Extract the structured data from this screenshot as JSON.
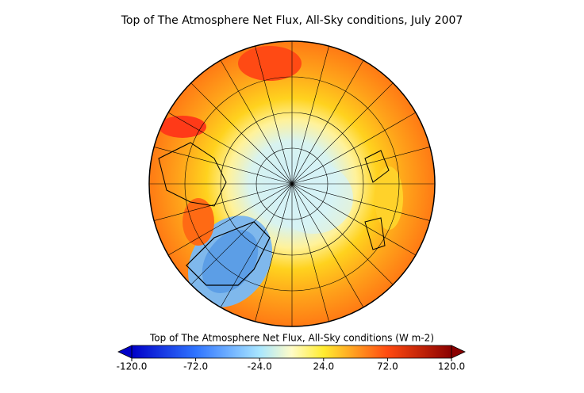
{
  "title": "Top of The Atmosphere Net Flux, All-Sky conditions, July 2007",
  "colorbar": {
    "label": "Top of The Atmosphere Net Flux, All-Sky conditions (W m-2)",
    "lim": [
      -120,
      120
    ],
    "ticks": [
      {
        "value": -120,
        "label": "-120.0"
      },
      {
        "value": -72,
        "label": "-72.0"
      },
      {
        "value": -24,
        "label": "-24.0"
      },
      {
        "value": 24,
        "label": "24.0"
      },
      {
        "value": 72,
        "label": "72.0"
      },
      {
        "value": 120,
        "label": "120.0"
      }
    ]
  }
}
